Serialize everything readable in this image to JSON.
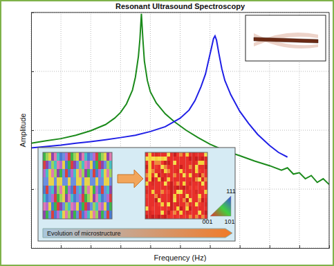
{
  "chart_data": {
    "type": "line",
    "title": "Resonant Ultrasound Spectroscopy",
    "xlabel": "Frequency (Hz)",
    "ylabel": "Amplitude",
    "log": "y",
    "grid": true,
    "tick_labels": false,
    "xlim": [
      0,
      100
    ],
    "xticks": [
      0,
      10,
      20,
      30,
      40,
      50,
      60,
      70,
      80,
      90,
      100
    ],
    "ylim": [
      1,
      10000
    ],
    "yticks": [
      1,
      10,
      100,
      1000,
      10000
    ],
    "series": [
      {
        "color": "#1a8a1a",
        "x": [
          0,
          5,
          10,
          15,
          20,
          25,
          28,
          30,
          32,
          34,
          35,
          36,
          36.5,
          37,
          37.5,
          38,
          39,
          40,
          42,
          45,
          48,
          52,
          56,
          60,
          65,
          70,
          75,
          80,
          84,
          86,
          88,
          90,
          92,
          94,
          96,
          98,
          100
        ],
        "values": [
          60,
          66,
          72,
          82,
          98,
          125,
          160,
          200,
          280,
          480,
          800,
          1800,
          3500,
          9500,
          3500,
          1500,
          700,
          450,
          290,
          190,
          140,
          100,
          75,
          58,
          45,
          37,
          30,
          25,
          21,
          23,
          18,
          19,
          15,
          17,
          13,
          15,
          12
        ]
      },
      {
        "color": "#1f1fe6",
        "x": [
          0,
          5,
          10,
          15,
          20,
          25,
          30,
          35,
          40,
          45,
          50,
          53,
          55,
          57,
          58.5,
          59.5,
          60.5,
          61.2,
          61.7,
          62.2,
          63,
          64,
          65,
          67,
          70,
          73,
          76,
          80,
          83,
          86
        ],
        "values": [
          50,
          53,
          56,
          60,
          64,
          69,
          75,
          82,
          95,
          115,
          160,
          220,
          320,
          550,
          900,
          1500,
          2500,
          3600,
          4000,
          3400,
          2000,
          1100,
          700,
          400,
          210,
          130,
          85,
          55,
          42,
          35
        ]
      }
    ],
    "annotations": {
      "triangle_labels": [
        "111",
        "001",
        "101"
      ],
      "arrow_label": "Evolution of microstructure"
    }
  }
}
